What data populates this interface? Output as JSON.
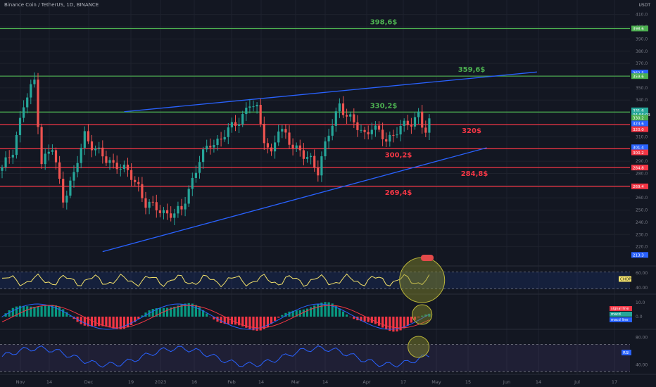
{
  "header": {
    "symbol": "Binance Coin / TetherUS, 1D, BINANCE",
    "currency": "USDT"
  },
  "colors": {
    "background": "#131722",
    "grid": "#1e222d",
    "up": "#26a69a",
    "down": "#ef5350",
    "support": "#f23645",
    "resistance": "#4caf50",
    "trendline": "#2962ff",
    "label_red": "#f23645",
    "label_green": "#4caf50"
  },
  "chart_data": [
    {
      "type": "candlestick",
      "title": "Binance Coin / TetherUS, 1D, BINANCE",
      "ylim": [
        210,
        415
      ],
      "y_ticks": [
        410.0,
        400.0,
        390.0,
        380.0,
        370.0,
        360.0,
        350.0,
        340.0,
        330.0,
        320.0,
        310.0,
        300.0,
        290.0,
        280.0,
        270.0,
        260.0,
        250.0,
        240.0,
        230.0,
        220.0
      ],
      "x_labels": [
        "Nov",
        "14",
        "Dec",
        "19",
        "2023",
        "16",
        "Feb",
        "14",
        "Mar",
        "14",
        "Apr",
        "17",
        "May",
        "15",
        "Jun",
        "14",
        "Jul",
        "17"
      ],
      "close_path": [
        [
          0,
          283
        ],
        [
          3,
          300
        ],
        [
          6,
          335
        ],
        [
          9,
          356
        ],
        [
          11,
          290
        ],
        [
          14,
          300
        ],
        [
          17,
          260
        ],
        [
          20,
          278
        ],
        [
          23,
          312
        ],
        [
          26,
          300
        ],
        [
          29,
          290
        ],
        [
          32,
          288
        ],
        [
          35,
          280
        ],
        [
          38,
          270
        ],
        [
          40,
          255
        ],
        [
          42,
          252
        ],
        [
          44,
          250
        ],
        [
          46,
          248
        ],
        [
          48,
          246
        ],
        [
          50,
          250
        ],
        [
          52,
          268
        ],
        [
          55,
          290
        ],
        [
          58,
          305
        ],
        [
          61,
          308
        ],
        [
          64,
          318
        ],
        [
          67,
          328
        ],
        [
          69,
          336
        ],
        [
          71,
          332
        ],
        [
          73,
          310
        ],
        [
          75,
          295
        ],
        [
          77,
          315
        ],
        [
          79,
          312
        ],
        [
          82,
          300
        ],
        [
          84,
          293
        ],
        [
          86,
          292
        ],
        [
          88,
          283
        ],
        [
          90,
          302
        ],
        [
          92,
          320
        ],
        [
          94,
          338
        ],
        [
          96,
          327
        ],
        [
          98,
          320
        ],
        [
          101,
          313
        ],
        [
          103,
          318
        ],
        [
          105,
          312
        ],
        [
          107,
          308
        ],
        [
          110,
          315
        ],
        [
          112,
          318
        ],
        [
          114,
          322
        ],
        [
          116,
          330
        ],
        [
          117,
          320
        ],
        [
          118,
          313
        ],
        [
          119,
          320
        ]
      ],
      "horizontal_levels": [
        {
          "price": 398.6,
          "label": "398,6$",
          "role": "resistance"
        },
        {
          "price": 359.6,
          "label": "359,6$",
          "role": "resistance"
        },
        {
          "price": 330.2,
          "label": "330,2$",
          "role": "resistance"
        },
        {
          "price": 320.0,
          "label": "320$",
          "role": "support"
        },
        {
          "price": 300.2,
          "label": "300,2$",
          "role": "support"
        },
        {
          "price": 284.8,
          "label": "284,8$",
          "role": "support"
        },
        {
          "price": 269.4,
          "label": "269,4$",
          "role": "support"
        }
      ],
      "trendlines": [
        {
          "from": [
            34,
            330.5
          ],
          "to": [
            149,
            363
          ]
        },
        {
          "from": [
            28,
            216
          ],
          "to": [
            135,
            301
          ]
        }
      ],
      "price_axis_tags": [
        {
          "text": "398.6",
          "price": 398.6,
          "color": "#4caf50"
        },
        {
          "text": "362.5",
          "price": 362.5,
          "color": "#2962ff"
        },
        {
          "text": "359.6",
          "price": 359.6,
          "color": "#4caf50"
        },
        {
          "text": "331.6",
          "price": 331.6,
          "color": "#26a69a"
        },
        {
          "text": "04:56:03",
          "price": 328.3,
          "color": "#26a69a"
        },
        {
          "text": "330.2",
          "price": 325.6,
          "color": "#4caf50"
        },
        {
          "text": "323.6",
          "price": 320.9,
          "color": "#2962ff"
        },
        {
          "text": "320.0",
          "price": 316.2,
          "color": "#f23645"
        },
        {
          "text": "301.4",
          "price": 301.4,
          "color": "#2962ff"
        },
        {
          "text": "300.2",
          "price": 297.2,
          "color": "#f23645"
        },
        {
          "text": "284.8",
          "price": 284.8,
          "color": "#f23645"
        },
        {
          "text": "269.4",
          "price": 269.4,
          "color": "#f23645"
        },
        {
          "text": "213.3",
          "price": 213.3,
          "color": "#2962ff"
        }
      ]
    },
    {
      "type": "line",
      "name": "CHOP",
      "y_ticks": [
        60.0,
        40.0
      ],
      "ylim": [
        33,
        68
      ],
      "band": [
        38.2,
        61.8
      ],
      "tag": {
        "text": "CHOP",
        "color": "#f5e36b"
      }
    },
    {
      "type": "bar",
      "name": "MACD",
      "y_ticks": [
        10.0,
        0.0
      ],
      "ylim": [
        -8,
        15
      ],
      "legend": [
        {
          "text": "signal line",
          "color": "#f23645"
        },
        {
          "text": "macd",
          "color": "#26a69a"
        },
        {
          "text": "macd line",
          "color": "#2962ff"
        }
      ]
    },
    {
      "type": "line",
      "name": "RSI",
      "y_ticks": [
        80.0,
        40.0
      ],
      "ylim": [
        28,
        88
      ],
      "band": [
        30,
        70
      ],
      "tag": {
        "text": "RSI",
        "color": "#2962ff"
      }
    }
  ]
}
